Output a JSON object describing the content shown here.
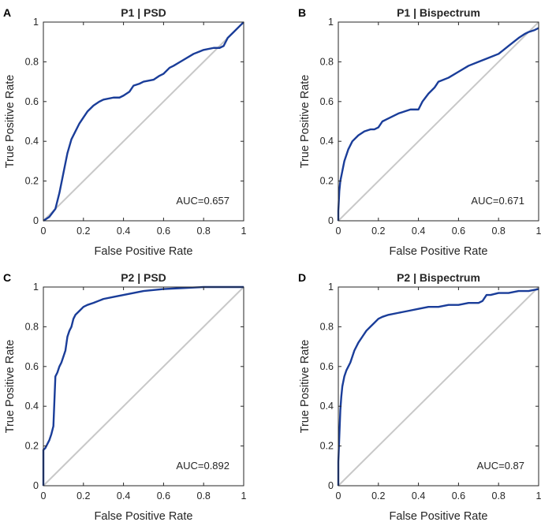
{
  "colors": {
    "roc": "#1a3d99",
    "chance": "#c8c8c8",
    "axes": "#262626",
    "background": "#ffffff"
  },
  "chart_data": [
    {
      "letter": "A",
      "type": "line",
      "title": "P1 | PSD",
      "xlabel": "False Positive Rate",
      "ylabel": "True Positive Rate",
      "xlim": [
        0,
        1
      ],
      "ylim": [
        0,
        1
      ],
      "xticks": [
        "0",
        "0.2",
        "0.4",
        "0.6",
        "0.8",
        "1"
      ],
      "yticks": [
        "0",
        "0.2",
        "0.4",
        "0.6",
        "0.8",
        "1"
      ],
      "auc_label": "AUC=0.657",
      "series": [
        {
          "name": "ROC",
          "x": [
            0,
            0.03,
            0.06,
            0.08,
            0.1,
            0.12,
            0.14,
            0.16,
            0.18,
            0.2,
            0.22,
            0.25,
            0.28,
            0.3,
            0.35,
            0.38,
            0.4,
            0.43,
            0.45,
            0.48,
            0.5,
            0.55,
            0.58,
            0.6,
            0.63,
            0.65,
            0.7,
            0.75,
            0.8,
            0.85,
            0.88,
            0.9,
            0.92,
            0.95,
            0.98,
            1
          ],
          "y": [
            0,
            0.02,
            0.06,
            0.14,
            0.24,
            0.34,
            0.41,
            0.45,
            0.49,
            0.52,
            0.55,
            0.58,
            0.6,
            0.61,
            0.62,
            0.62,
            0.63,
            0.65,
            0.68,
            0.69,
            0.7,
            0.71,
            0.73,
            0.74,
            0.77,
            0.78,
            0.81,
            0.84,
            0.86,
            0.87,
            0.87,
            0.88,
            0.92,
            0.95,
            0.98,
            1
          ]
        },
        {
          "name": "Chance",
          "x": [
            0,
            1
          ],
          "y": [
            0,
            1
          ]
        }
      ]
    },
    {
      "letter": "B",
      "type": "line",
      "title": "P1 | Bispectrum",
      "xlabel": "False Positive Rate",
      "ylabel": "True Positive Rate",
      "xlim": [
        0,
        1
      ],
      "ylim": [
        0,
        1
      ],
      "xticks": [
        "0",
        "0.2",
        "0.4",
        "0.6",
        "0.8",
        "1"
      ],
      "yticks": [
        "0",
        "0.2",
        "0.4",
        "0.6",
        "0.8",
        "1"
      ],
      "auc_label": "AUC=0.671",
      "series": [
        {
          "name": "ROC",
          "x": [
            0,
            0,
            0.005,
            0.01,
            0.02,
            0.03,
            0.05,
            0.07,
            0.1,
            0.13,
            0.16,
            0.18,
            0.2,
            0.22,
            0.24,
            0.26,
            0.3,
            0.33,
            0.36,
            0.38,
            0.4,
            0.42,
            0.45,
            0.48,
            0.5,
            0.55,
            0.6,
            0.65,
            0.7,
            0.75,
            0.8,
            0.85,
            0.9,
            0.93,
            0.95,
            0.98,
            1
          ],
          "y": [
            0,
            0.05,
            0.15,
            0.2,
            0.25,
            0.3,
            0.36,
            0.4,
            0.43,
            0.45,
            0.46,
            0.46,
            0.47,
            0.5,
            0.51,
            0.52,
            0.54,
            0.55,
            0.56,
            0.56,
            0.56,
            0.6,
            0.64,
            0.67,
            0.7,
            0.72,
            0.75,
            0.78,
            0.8,
            0.82,
            0.84,
            0.88,
            0.92,
            0.94,
            0.95,
            0.96,
            0.97
          ]
        },
        {
          "name": "Chance",
          "x": [
            0,
            1
          ],
          "y": [
            0,
            1
          ]
        }
      ]
    },
    {
      "letter": "C",
      "type": "line",
      "title": "P2 | PSD",
      "xlabel": "False Positive Rate",
      "ylabel": "True Positive Rate",
      "xlim": [
        0,
        1
      ],
      "ylim": [
        0,
        1
      ],
      "xticks": [
        "0",
        "0.2",
        "0.4",
        "0.6",
        "0.8",
        "1"
      ],
      "yticks": [
        "0",
        "0.2",
        "0.4",
        "0.6",
        "0.8",
        "1"
      ],
      "auc_label": "AUC=0.892",
      "series": [
        {
          "name": "ROC",
          "x": [
            0,
            0,
            0.01,
            0.02,
            0.03,
            0.04,
            0.05,
            0.06,
            0.07,
            0.08,
            0.09,
            0.1,
            0.11,
            0.12,
            0.13,
            0.14,
            0.15,
            0.16,
            0.18,
            0.2,
            0.22,
            0.25,
            0.3,
            0.35,
            0.4,
            0.45,
            0.5,
            0.6,
            0.7,
            0.8,
            0.9,
            1
          ],
          "y": [
            0,
            0.18,
            0.19,
            0.21,
            0.23,
            0.26,
            0.3,
            0.55,
            0.57,
            0.6,
            0.62,
            0.65,
            0.68,
            0.75,
            0.78,
            0.8,
            0.84,
            0.86,
            0.88,
            0.9,
            0.91,
            0.92,
            0.94,
            0.95,
            0.96,
            0.97,
            0.98,
            0.99,
            0.995,
            1,
            1,
            1
          ]
        },
        {
          "name": "Chance",
          "x": [
            0,
            1
          ],
          "y": [
            0,
            1
          ]
        }
      ]
    },
    {
      "letter": "D",
      "type": "line",
      "title": "P2 | Bispectrum",
      "xlabel": "False Positive Rate",
      "ylabel": "True Positive Rate",
      "xlim": [
        0,
        1
      ],
      "ylim": [
        0,
        1
      ],
      "xticks": [
        "0",
        "0.2",
        "0.4",
        "0.6",
        "0.8",
        "1"
      ],
      "yticks": [
        "0",
        "0.2",
        "0.4",
        "0.6",
        "0.8",
        "1"
      ],
      "auc_label": "AUC=0.87",
      "series": [
        {
          "name": "ROC",
          "x": [
            0,
            0,
            0.005,
            0.01,
            0.015,
            0.02,
            0.03,
            0.04,
            0.05,
            0.06,
            0.07,
            0.08,
            0.1,
            0.12,
            0.14,
            0.16,
            0.18,
            0.2,
            0.22,
            0.25,
            0.3,
            0.35,
            0.4,
            0.45,
            0.5,
            0.55,
            0.6,
            0.65,
            0.7,
            0.72,
            0.74,
            0.76,
            0.8,
            0.85,
            0.9,
            0.95,
            1
          ],
          "y": [
            0,
            0.12,
            0.25,
            0.38,
            0.45,
            0.5,
            0.55,
            0.58,
            0.6,
            0.62,
            0.65,
            0.68,
            0.72,
            0.75,
            0.78,
            0.8,
            0.82,
            0.84,
            0.85,
            0.86,
            0.87,
            0.88,
            0.89,
            0.9,
            0.9,
            0.91,
            0.91,
            0.92,
            0.92,
            0.93,
            0.96,
            0.96,
            0.97,
            0.97,
            0.98,
            0.98,
            0.99
          ]
        },
        {
          "name": "Chance",
          "x": [
            0,
            1
          ],
          "y": [
            0,
            1
          ]
        }
      ]
    }
  ]
}
